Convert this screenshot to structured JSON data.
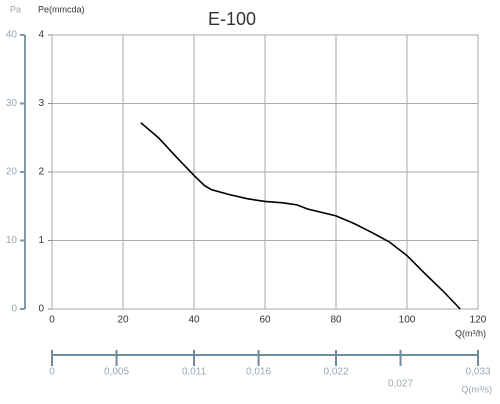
{
  "chart_data": {
    "type": "line",
    "title": "E-100",
    "y_label": "Pe(mmcda)",
    "y2_label": "Pa",
    "x_label": "Q(m³/h)",
    "x2_label": "Q(m³/s)",
    "x": [
      25,
      30,
      35,
      40,
      43,
      45,
      50,
      55,
      60,
      65,
      69,
      72,
      80,
      85,
      90,
      95,
      100,
      105,
      110,
      115
    ],
    "series": [
      {
        "color": "#000000",
        "values": [
          2.72,
          2.5,
          2.22,
          1.95,
          1.8,
          1.74,
          1.67,
          1.61,
          1.57,
          1.55,
          1.52,
          1.46,
          1.36,
          1.25,
          1.12,
          0.98,
          0.78,
          0.52,
          0.27,
          0
        ]
      }
    ],
    "xlim": [
      0,
      120
    ],
    "xticks": [
      0,
      20,
      40,
      60,
      80,
      100,
      120
    ],
    "ylim": [
      0,
      4
    ],
    "yticks": [
      0,
      1,
      2,
      3,
      4
    ],
    "y2lim": [
      0,
      40
    ],
    "y2ticks": [
      0,
      10,
      20,
      30,
      40
    ],
    "x2lim": [
      0,
      0.033
    ],
    "x2ticks": [
      0,
      {
        "value": 0.005,
        "label": "0,005"
      },
      {
        "value": 0.011,
        "label": "0,011"
      },
      {
        "value": 0.016,
        "label": "0,016"
      },
      {
        "value": 0.022,
        "label": "0,022"
      },
      {
        "value": 0.027,
        "label": "0,027"
      },
      {
        "value": 0.033,
        "label": "0,033"
      }
    ],
    "grid": true
  }
}
